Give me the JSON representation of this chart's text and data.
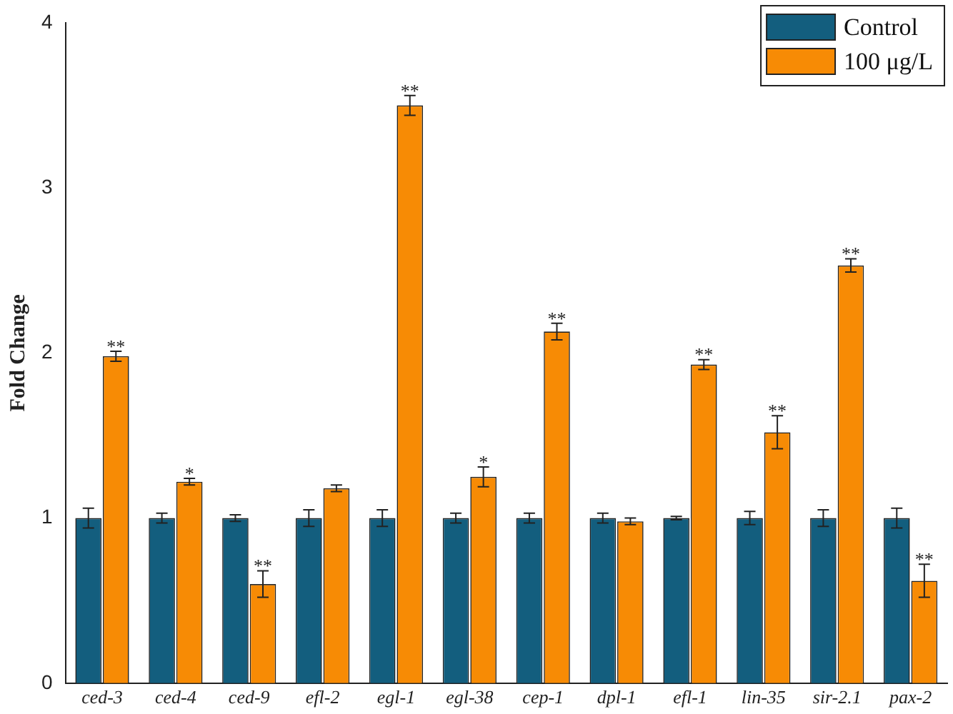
{
  "chart_data": {
    "type": "bar",
    "ylabel": "Fold Change",
    "categories": [
      "ced-3",
      "ced-4",
      "ced-9",
      "efl-2",
      "egl-1",
      "egl-38",
      "cep-1",
      "dpl-1",
      "efl-1",
      "lin-35",
      "sir-2.1",
      "pax-2"
    ],
    "series": [
      {
        "name": "Control",
        "color": "#135e7e",
        "values": [
          1,
          1,
          1,
          1,
          1,
          1,
          1,
          1,
          1,
          1,
          1,
          1
        ],
        "errors": [
          0.06,
          0.03,
          0.02,
          0.05,
          0.05,
          0.03,
          0.03,
          0.03,
          0.01,
          0.04,
          0.05,
          0.06
        ]
      },
      {
        "name": "100 μg/L",
        "color": "#f78b05",
        "values": [
          1.98,
          1.22,
          0.6,
          1.18,
          3.5,
          1.25,
          2.13,
          0.98,
          1.93,
          1.52,
          2.53,
          0.62
        ],
        "errors": [
          0.03,
          0.02,
          0.08,
          0.02,
          0.06,
          0.06,
          0.05,
          0.02,
          0.03,
          0.1,
          0.04,
          0.1
        ]
      }
    ],
    "ylim": [
      0,
      4
    ],
    "yticks": [
      0,
      1,
      2,
      3,
      4
    ],
    "grid": false,
    "legend": "top right",
    "annotations": [
      {
        "text": "**",
        "x": "ced-3",
        "y": 1.98
      },
      {
        "text": "*",
        "x": "ced-4",
        "y": 1.22
      },
      {
        "text": "**",
        "x": "ced-9",
        "y": 0.6
      },
      {
        "text": "**",
        "x": "egl-1",
        "y": 3.5
      },
      {
        "text": "*",
        "x": "egl-38",
        "y": 1.25
      },
      {
        "text": "**",
        "x": "cep-1",
        "y": 2.13
      },
      {
        "text": "**",
        "x": "efl-1",
        "y": 1.93
      },
      {
        "text": "**",
        "x": "lin-35",
        "y": 1.52
      },
      {
        "text": "**",
        "x": "sir-2.1",
        "y": 2.53
      },
      {
        "text": "**",
        "x": "pax-2",
        "y": 0.62
      }
    ]
  }
}
